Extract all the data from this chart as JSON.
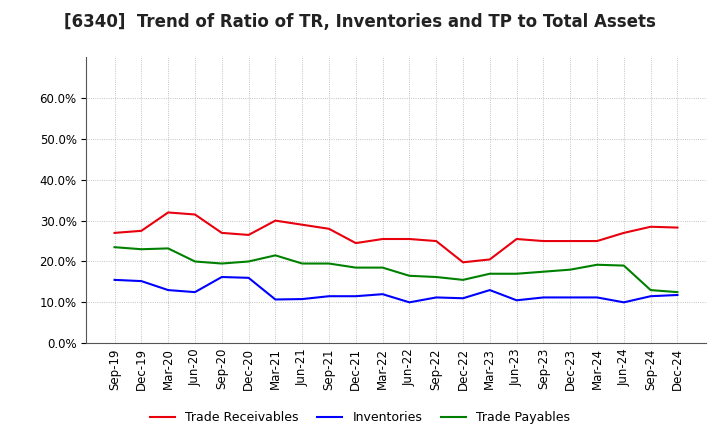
{
  "title": "[6340]  Trend of Ratio of TR, Inventories and TP to Total Assets",
  "x_labels": [
    "Sep-19",
    "Dec-19",
    "Mar-20",
    "Jun-20",
    "Sep-20",
    "Dec-20",
    "Mar-21",
    "Jun-21",
    "Sep-21",
    "Dec-21",
    "Mar-22",
    "Jun-22",
    "Sep-22",
    "Dec-22",
    "Mar-23",
    "Jun-23",
    "Sep-23",
    "Dec-23",
    "Mar-24",
    "Jun-24",
    "Sep-24",
    "Dec-24"
  ],
  "trade_receivables": [
    0.27,
    0.275,
    0.32,
    0.315,
    0.27,
    0.265,
    0.3,
    0.29,
    0.28,
    0.245,
    0.255,
    0.255,
    0.25,
    0.198,
    0.205,
    0.255,
    0.25,
    0.25,
    0.25,
    0.27,
    0.285,
    0.283
  ],
  "inventories": [
    0.155,
    0.152,
    0.13,
    0.125,
    0.162,
    0.16,
    0.107,
    0.108,
    0.115,
    0.115,
    0.12,
    0.1,
    0.112,
    0.11,
    0.13,
    0.105,
    0.112,
    0.112,
    0.112,
    0.1,
    0.115,
    0.118
  ],
  "trade_payables": [
    0.235,
    0.23,
    0.232,
    0.2,
    0.195,
    0.2,
    0.215,
    0.195,
    0.195,
    0.185,
    0.185,
    0.165,
    0.162,
    0.155,
    0.17,
    0.17,
    0.175,
    0.18,
    0.192,
    0.19,
    0.13,
    0.125
  ],
  "line_color_tr": "#e8000d",
  "line_color_inv": "#0000ff",
  "line_color_tp": "#008000",
  "ylim": [
    0.0,
    0.7
  ],
  "yticks": [
    0.0,
    0.1,
    0.2,
    0.3,
    0.4,
    0.5,
    0.6
  ],
  "legend_labels": [
    "Trade Receivables",
    "Inventories",
    "Trade Payables"
  ],
  "background_color": "#ffffff",
  "grid_color": "#b0b0b0",
  "title_fontsize": 12,
  "tick_fontsize": 8.5,
  "linewidth": 1.5
}
